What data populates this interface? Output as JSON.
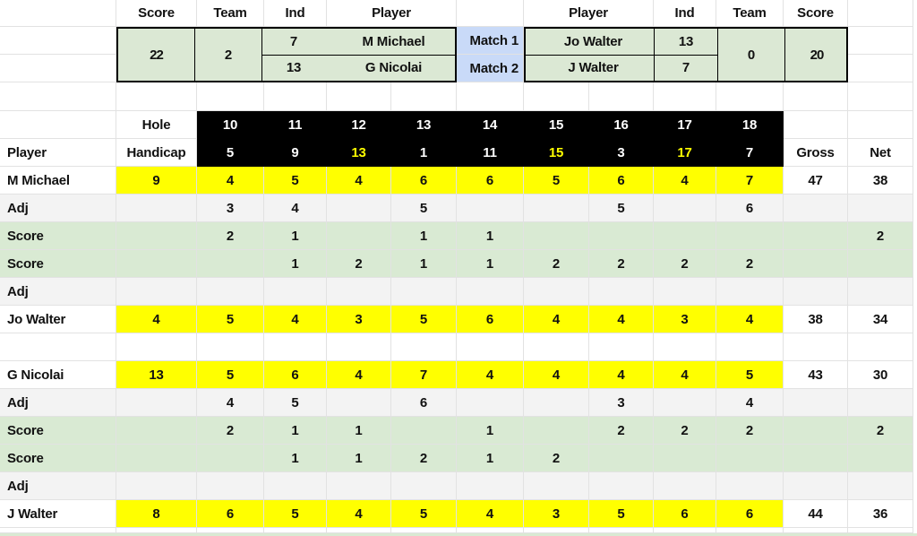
{
  "summary": {
    "left": {
      "headers": {
        "score": "Score",
        "team": "Team",
        "ind": "Ind",
        "player": "Player"
      },
      "total_score": "22",
      "team_points": "2",
      "players": [
        {
          "ind": "7",
          "name": "M Michael"
        },
        {
          "ind": "13",
          "name": "G Nicolai"
        }
      ]
    },
    "matches": [
      {
        "label": "Match 1"
      },
      {
        "label": "Match 2"
      }
    ],
    "right": {
      "headers": {
        "player": "Player",
        "ind": "Ind",
        "team": "Team",
        "score": "Score"
      },
      "players": [
        {
          "name": "Jo Walter",
          "ind": "13"
        },
        {
          "name": "J Walter",
          "ind": "7"
        }
      ],
      "team_points": "0",
      "total_score": "20"
    }
  },
  "table": {
    "player_col_label": "Player",
    "hole_label": "Hole",
    "handicap_label": "Handicap",
    "gross_label": "Gross",
    "net_label": "Net",
    "holes": [
      "10",
      "11",
      "12",
      "13",
      "14",
      "15",
      "16",
      "17",
      "18"
    ],
    "handicaps": [
      {
        "v": "5",
        "highlight": false
      },
      {
        "v": "9",
        "highlight": false
      },
      {
        "v": "13",
        "highlight": true
      },
      {
        "v": "1",
        "highlight": false
      },
      {
        "v": "11",
        "highlight": false
      },
      {
        "v": "15",
        "highlight": true
      },
      {
        "v": "3",
        "highlight": false
      },
      {
        "v": "17",
        "highlight": true
      },
      {
        "v": "7",
        "highlight": false
      }
    ],
    "rows": [
      {
        "type": "player",
        "label": "M Michael",
        "handicap": "9",
        "cells": [
          "4",
          "5",
          "4",
          "6",
          "6",
          "5",
          "6",
          "4",
          "7"
        ],
        "gross": "47",
        "net": "38"
      },
      {
        "type": "adj",
        "label": "Adj",
        "cells": [
          "3",
          "4",
          "",
          "5",
          "",
          "",
          "5",
          "",
          "6"
        ],
        "gross": "",
        "net": ""
      },
      {
        "type": "score",
        "label": "Score",
        "cells": [
          "2",
          "1",
          "",
          "1",
          "1",
          "",
          "",
          "",
          ""
        ],
        "gross": "",
        "net": "2"
      },
      {
        "type": "score",
        "label": "Score",
        "cells": [
          "",
          "1",
          "2",
          "1",
          "1",
          "2",
          "2",
          "2",
          "2"
        ],
        "gross": "",
        "net": ""
      },
      {
        "type": "adj",
        "label": "Adj",
        "cells": [
          "",
          "",
          "",
          "",
          "",
          "",
          "",
          "",
          ""
        ],
        "gross": "",
        "net": ""
      },
      {
        "type": "player",
        "label": "Jo Walter",
        "handicap": "4",
        "cells": [
          "5",
          "4",
          "3",
          "5",
          "6",
          "4",
          "4",
          "3",
          "4"
        ],
        "gross": "38",
        "net": "34"
      },
      {
        "type": "blank",
        "label": "",
        "cells": [
          "",
          "",
          "",
          "",
          "",
          "",
          "",
          "",
          ""
        ],
        "gross": "",
        "net": ""
      },
      {
        "type": "player",
        "label": "G Nicolai",
        "handicap": "13",
        "cells": [
          "5",
          "6",
          "4",
          "7",
          "4",
          "4",
          "4",
          "4",
          "5"
        ],
        "gross": "43",
        "net": "30"
      },
      {
        "type": "adj",
        "label": "Adj",
        "cells": [
          "4",
          "5",
          "",
          "6",
          "",
          "",
          "3",
          "",
          "4"
        ],
        "gross": "",
        "net": ""
      },
      {
        "type": "score",
        "label": "Score",
        "cells": [
          "2",
          "1",
          "1",
          "",
          "1",
          "",
          "2",
          "2",
          "2"
        ],
        "gross": "",
        "net": "2"
      },
      {
        "type": "score",
        "label": "Score",
        "cells": [
          "",
          "1",
          "1",
          "2",
          "1",
          "2",
          "",
          "",
          ""
        ],
        "gross": "",
        "net": ""
      },
      {
        "type": "adj",
        "label": "Adj",
        "cells": [
          "",
          "",
          "",
          "",
          "",
          "",
          "",
          "",
          ""
        ],
        "gross": "",
        "net": ""
      },
      {
        "type": "player",
        "label": "J Walter",
        "handicap": "8",
        "cells": [
          "6",
          "5",
          "4",
          "5",
          "4",
          "3",
          "5",
          "6",
          "6"
        ],
        "gross": "44",
        "net": "36"
      }
    ]
  },
  "colors": {
    "summary_green": "#dbe8d4",
    "match_blue": "#c9daf8",
    "highlight_yellow": "#ffff00",
    "adj_gray": "#f3f3f3",
    "score_green": "#d9ead3",
    "header_black": "#000000",
    "handicap_text_yellow": "#ffff00",
    "gridline": "#e2e2e2"
  }
}
